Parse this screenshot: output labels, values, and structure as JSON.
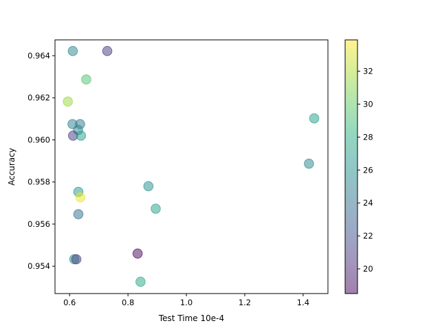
{
  "chart_data": {
    "type": "scatter",
    "title": "",
    "xlabel": "Test Time 10e-4",
    "ylabel": "Accuracy",
    "xlim": [
      0.55,
      1.485
    ],
    "ylim": [
      0.9527,
      0.96475
    ],
    "xticks": [
      0.6,
      0.8,
      1.0,
      1.2,
      1.4
    ],
    "xtick_labels": [
      "0.6",
      "0.8",
      "1.0",
      "1.2",
      "1.4"
    ],
    "yticks": [
      0.954,
      0.956,
      0.958,
      0.96,
      0.962,
      0.964
    ],
    "ytick_labels": [
      "0.954",
      "0.956",
      "0.958",
      "0.960",
      "0.962",
      "0.964"
    ],
    "grid": false,
    "marker_alpha": 0.5,
    "colormap": "viridis",
    "colorbar": {
      "range": [
        18.5,
        33.9
      ],
      "ticks": [
        20,
        22,
        24,
        26,
        28,
        30,
        32
      ],
      "tick_labels": [
        "20",
        "22",
        "24",
        "26",
        "28",
        "30",
        "32"
      ]
    },
    "points": [
      {
        "x": 0.611,
        "y": 0.96422,
        "c": 25.5
      },
      {
        "x": 0.729,
        "y": 0.96422,
        "c": 21.0
      },
      {
        "x": 0.657,
        "y": 0.96287,
        "c": 29.5
      },
      {
        "x": 0.594,
        "y": 0.96182,
        "c": 31.5
      },
      {
        "x": 0.61,
        "y": 0.96075,
        "c": 25.0
      },
      {
        "x": 0.636,
        "y": 0.96075,
        "c": 24.5
      },
      {
        "x": 0.629,
        "y": 0.96047,
        "c": 25.5
      },
      {
        "x": 0.612,
        "y": 0.9602,
        "c": 21.0
      },
      {
        "x": 0.639,
        "y": 0.9602,
        "c": 27.0
      },
      {
        "x": 1.438,
        "y": 0.96102,
        "c": 27.0
      },
      {
        "x": 1.42,
        "y": 0.95887,
        "c": 25.5
      },
      {
        "x": 0.87,
        "y": 0.9578,
        "c": 26.0
      },
      {
        "x": 0.63,
        "y": 0.95753,
        "c": 26.5
      },
      {
        "x": 0.637,
        "y": 0.95727,
        "c": 33.5
      },
      {
        "x": 0.895,
        "y": 0.95673,
        "c": 27.0
      },
      {
        "x": 0.63,
        "y": 0.95647,
        "c": 24.0
      },
      {
        "x": 0.833,
        "y": 0.9546,
        "c": 18.8
      },
      {
        "x": 0.616,
        "y": 0.95433,
        "c": 26.5
      },
      {
        "x": 0.623,
        "y": 0.95433,
        "c": 21.0
      },
      {
        "x": 0.843,
        "y": 0.95326,
        "c": 27.5
      }
    ]
  }
}
